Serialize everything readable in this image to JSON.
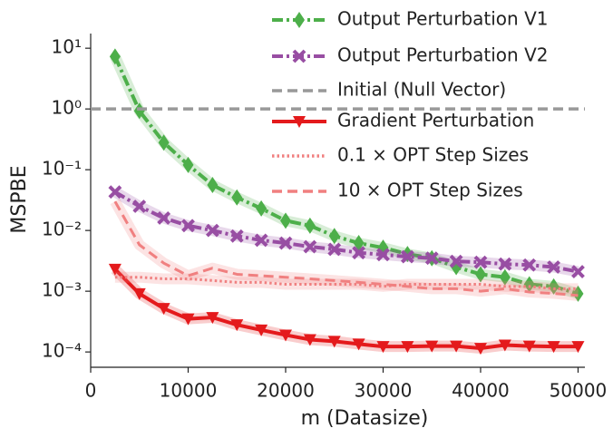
{
  "chart_data": {
    "type": "line",
    "x_label": "m (Datasize)",
    "y_label": "MSPBE",
    "x": [
      2500,
      5000,
      7500,
      10000,
      12500,
      15000,
      17500,
      20000,
      22500,
      25000,
      27500,
      30000,
      32500,
      35000,
      37500,
      40000,
      42500,
      45000,
      47500,
      50000
    ],
    "series": [
      {
        "name": "Output Perturbation V1",
        "color": "#4daf4a",
        "marker": "diamond",
        "dash": "dashdot",
        "values": [
          7.3,
          0.93,
          0.28,
          0.12,
          0.056,
          0.035,
          0.023,
          0.0145,
          0.012,
          0.0081,
          0.0062,
          0.0052,
          0.0041,
          0.0035,
          0.0025,
          0.0019,
          0.0017,
          0.0013,
          0.0012,
          0.00091
        ]
      },
      {
        "name": "Output Perturbation V2",
        "color": "#984ea3",
        "marker": "x",
        "dash": "dashdot",
        "values": [
          0.043,
          0.025,
          0.016,
          0.012,
          0.01,
          0.0081,
          0.0069,
          0.0062,
          0.0054,
          0.0049,
          0.0043,
          0.004,
          0.0037,
          0.0035,
          0.0031,
          0.003,
          0.0028,
          0.0027,
          0.0025,
          0.0021
        ]
      },
      {
        "name": "Initial (Null Vector)",
        "color": "#999999",
        "dash": "dashed",
        "value": 1
      },
      {
        "name": "Gradient Perturbation",
        "color": "#e41a1c",
        "marker": "triangle_down",
        "dash": "solid",
        "values": [
          0.0023,
          0.00091,
          0.00052,
          0.00035,
          0.00037,
          0.00028,
          0.00023,
          0.00019,
          0.00016,
          0.00015,
          0.000135,
          0.000123,
          0.000123,
          0.000125,
          0.000125,
          0.000115,
          0.00013,
          0.000125,
          0.000123,
          0.000123
        ]
      },
      {
        "name": "0.1 × OPT Step Sizes",
        "color": "#f08080",
        "dash": "dotted",
        "values": [
          0.0017,
          0.0017,
          0.0016,
          0.0016,
          0.0015,
          0.0014,
          0.0014,
          0.0013,
          0.0013,
          0.0013,
          0.0013,
          0.0012,
          0.0013,
          0.0013,
          0.0013,
          0.0013,
          0.0012,
          0.0012,
          0.0011,
          0.0011
        ]
      },
      {
        "name": "10 × OPT Step Sizes",
        "color": "#f08080",
        "dash": "dashed",
        "values": [
          0.03,
          0.0058,
          0.0029,
          0.0018,
          0.0024,
          0.0019,
          0.0018,
          0.0017,
          0.0016,
          0.0015,
          0.0014,
          0.0013,
          0.0012,
          0.0011,
          0.0011,
          0.001,
          0.0011,
          0.00097,
          0.00092,
          0.00085
        ]
      }
    ],
    "xlim": [
      0,
      50700
    ],
    "xticks": [
      0,
      10000,
      20000,
      30000,
      40000,
      50000
    ],
    "ylim": [
      5.6e-05,
      20
    ],
    "ylog": true,
    "yticks": [
      {
        "value": 0.0001,
        "label": "10⁻⁴"
      },
      {
        "value": 0.001,
        "label": "10⁻³"
      },
      {
        "value": 0.01,
        "label": "10⁻²"
      },
      {
        "value": 0.1,
        "label": "10⁻¹"
      },
      {
        "value": 1,
        "label": "10⁰"
      },
      {
        "value": 10,
        "label": "10¹"
      }
    ],
    "legend": "upper right"
  }
}
